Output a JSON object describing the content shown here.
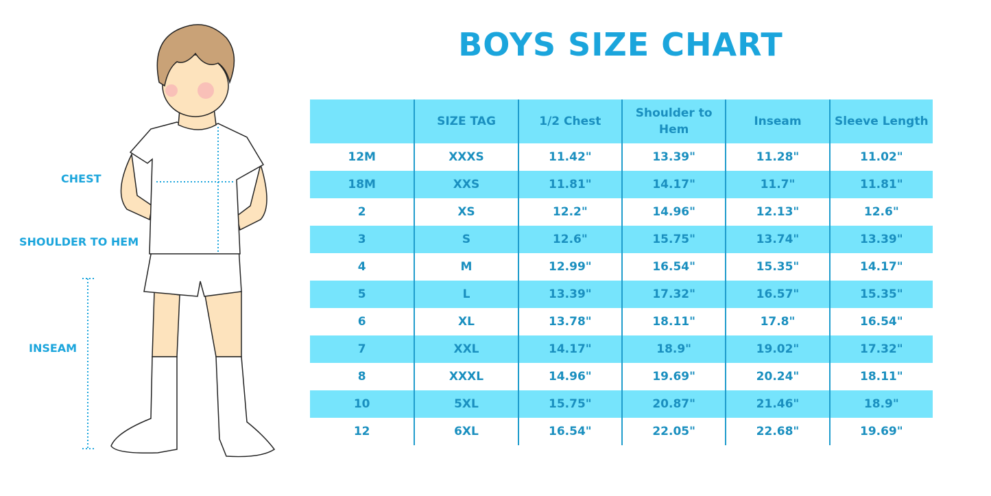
{
  "title": "BOYS SIZE CHART",
  "figure_labels": {
    "chest": "CHEST",
    "shoulder_to_hem": "SHOULDER TO HEM",
    "inseam": "INSEAM"
  },
  "colors": {
    "accent": "#1ba5dc",
    "row_fill": "#76e4fc",
    "text": "#1a8fbf"
  },
  "table": {
    "headers": [
      "",
      "SIZE TAG",
      "1/2 Chest",
      "Shoulder to Hem",
      "Inseam",
      "Sleeve Length"
    ],
    "rows": [
      [
        "12M",
        "XXXS",
        "11.42\"",
        "13.39\"",
        "11.28\"",
        "11.02\""
      ],
      [
        "18M",
        "XXS",
        "11.81\"",
        "14.17\"",
        "11.7\"",
        "11.81\""
      ],
      [
        "2",
        "XS",
        "12.2\"",
        "14.96\"",
        "12.13\"",
        "12.6\""
      ],
      [
        "3",
        "S",
        "12.6\"",
        "15.75\"",
        "13.74\"",
        "13.39\""
      ],
      [
        "4",
        "M",
        "12.99\"",
        "16.54\"",
        "15.35\"",
        "14.17\""
      ],
      [
        "5",
        "L",
        "13.39\"",
        "17.32\"",
        "16.57\"",
        "15.35\""
      ],
      [
        "6",
        "XL",
        "13.78\"",
        "18.11\"",
        "17.8\"",
        "16.54\""
      ],
      [
        "7",
        "XXL",
        "14.17\"",
        "18.9\"",
        "19.02\"",
        "17.32\""
      ],
      [
        "8",
        "XXXL",
        "14.96\"",
        "19.69\"",
        "20.24\"",
        "18.11\""
      ],
      [
        "10",
        "5XL",
        "15.75\"",
        "20.87\"",
        "21.46\"",
        "18.9\""
      ],
      [
        "12",
        "6XL",
        "16.54\"",
        "22.05\"",
        "22.68\"",
        "19.69\""
      ]
    ]
  }
}
